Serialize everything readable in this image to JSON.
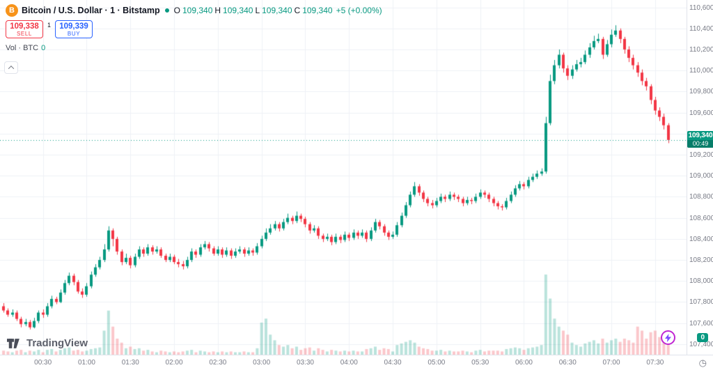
{
  "header": {
    "symbol_title": "Bitcoin / U.S. Dollar · 1 · Bitstamp",
    "ohlc": {
      "o_label": "O",
      "o": "109,340",
      "h_label": "H",
      "h": "109,340",
      "l_label": "L",
      "l": "109,340",
      "c_label": "C",
      "c": "109,340",
      "change": "+5 (+0.00%)"
    },
    "sell": {
      "price": "109,338",
      "label": "SELL"
    },
    "spread": "1",
    "buy": {
      "price": "109,339",
      "label": "BUY"
    },
    "volume_row": {
      "label": "Vol · BTC",
      "value": "0"
    }
  },
  "price_tag": {
    "price": "109,340",
    "countdown": "00:49"
  },
  "brand": {
    "name": "TradingView"
  },
  "badges": {
    "zero": "0"
  },
  "colors": {
    "up": "#089981",
    "down": "#f23645",
    "buy_blue": "#2962ff",
    "sell_red": "#f23645",
    "bitcoin_orange": "#f7931a",
    "axis_text": "#787b86",
    "grid": "#eef1f6"
  },
  "chart_data": {
    "type": "candlestick",
    "title": "Bitcoin / U.S. Dollar",
    "exchange": "Bitstamp",
    "interval": "1",
    "last_price": 109340,
    "price_min": 107300,
    "price_max": 110670,
    "x_ticks": [
      "00:30",
      "01:00",
      "01:30",
      "02:00",
      "02:30",
      "03:00",
      "03:30",
      "04:00",
      "04:30",
      "05:00",
      "05:30",
      "06:00",
      "06:30",
      "07:00",
      "07:30"
    ],
    "y_ticks": [
      110600,
      110400,
      110200,
      110000,
      109800,
      109600,
      109400,
      109200,
      109000,
      108800,
      108600,
      108400,
      108200,
      108000,
      107800,
      107600,
      107400
    ],
    "y_tick_labels": [
      "110,600",
      "110,400",
      "110,200",
      "110,000",
      "109,800",
      "109,600",
      "109,400",
      "109,200",
      "109,000",
      "108,800",
      "108,600",
      "108,400",
      "108,200",
      "108,000",
      "107,800",
      "107,600",
      "107,400"
    ],
    "volume_unit": "relative-0-100",
    "candles": [
      [
        107760,
        107790,
        107700,
        107720,
        5
      ],
      [
        107720,
        107740,
        107660,
        107680,
        4
      ],
      [
        107680,
        107730,
        107660,
        107700,
        3
      ],
      [
        107700,
        107720,
        107620,
        107640,
        5
      ],
      [
        107640,
        107660,
        107560,
        107590,
        6
      ],
      [
        107590,
        107640,
        107570,
        107610,
        3
      ],
      [
        107610,
        107630,
        107540,
        107560,
        5
      ],
      [
        107560,
        107650,
        107550,
        107620,
        4
      ],
      [
        107620,
        107720,
        107600,
        107700,
        6
      ],
      [
        107700,
        107730,
        107650,
        107680,
        3
      ],
      [
        107680,
        107790,
        107660,
        107760,
        6
      ],
      [
        107760,
        107860,
        107740,
        107830,
        7
      ],
      [
        107830,
        107850,
        107780,
        107800,
        4
      ],
      [
        107800,
        107920,
        107790,
        107890,
        6
      ],
      [
        107890,
        108010,
        107870,
        107980,
        8
      ],
      [
        107980,
        108080,
        107960,
        108050,
        9
      ],
      [
        108050,
        108070,
        107960,
        107990,
        5
      ],
      [
        107990,
        108010,
        107880,
        107900,
        6
      ],
      [
        107900,
        107930,
        107840,
        107870,
        4
      ],
      [
        107870,
        107980,
        107850,
        107950,
        5
      ],
      [
        107950,
        108090,
        107930,
        108060,
        7
      ],
      [
        108060,
        108160,
        108040,
        108130,
        8
      ],
      [
        108130,
        108230,
        108110,
        108200,
        9
      ],
      [
        108200,
        108350,
        108180,
        108300,
        30
      ],
      [
        108300,
        108520,
        108280,
        108480,
        55
      ],
      [
        108480,
        108500,
        108330,
        108400,
        35
      ],
      [
        108400,
        108420,
        108250,
        108280,
        20
      ],
      [
        108280,
        108300,
        108150,
        108180,
        15
      ],
      [
        108180,
        108260,
        108160,
        108220,
        8
      ],
      [
        108220,
        108240,
        108120,
        108150,
        10
      ],
      [
        108150,
        108260,
        108130,
        108230,
        7
      ],
      [
        108230,
        108330,
        108210,
        108300,
        8
      ],
      [
        108300,
        108320,
        108230,
        108260,
        5
      ],
      [
        108260,
        108350,
        108240,
        108320,
        6
      ],
      [
        108320,
        108340,
        108250,
        108280,
        4
      ],
      [
        108280,
        108330,
        108260,
        108300,
        3
      ],
      [
        108300,
        108320,
        108220,
        108240,
        5
      ],
      [
        108240,
        108260,
        108180,
        108200,
        4
      ],
      [
        108200,
        108260,
        108180,
        108230,
        3
      ],
      [
        108230,
        108250,
        108160,
        108180,
        4
      ],
      [
        108180,
        108210,
        108130,
        108160,
        3
      ],
      [
        108160,
        108190,
        108110,
        108140,
        4
      ],
      [
        108140,
        108230,
        108120,
        108200,
        5
      ],
      [
        108200,
        108310,
        108180,
        108280,
        6
      ],
      [
        108280,
        108300,
        108220,
        108250,
        3
      ],
      [
        108250,
        108350,
        108230,
        108320,
        5
      ],
      [
        108320,
        108380,
        108300,
        108350,
        4
      ],
      [
        108350,
        108370,
        108280,
        108310,
        3
      ],
      [
        108310,
        108330,
        108240,
        108260,
        4
      ],
      [
        108260,
        108330,
        108240,
        108300,
        3
      ],
      [
        108300,
        108320,
        108220,
        108250,
        4
      ],
      [
        108250,
        108320,
        108230,
        108290,
        3
      ],
      [
        108290,
        108310,
        108210,
        108240,
        4
      ],
      [
        108240,
        108310,
        108220,
        108280,
        3
      ],
      [
        108280,
        108330,
        108260,
        108300,
        3
      ],
      [
        108300,
        108320,
        108230,
        108260,
        4
      ],
      [
        108260,
        108320,
        108240,
        108290,
        3
      ],
      [
        108290,
        108310,
        108240,
        108270,
        3
      ],
      [
        108270,
        108360,
        108250,
        108330,
        8
      ],
      [
        108330,
        108430,
        108310,
        108400,
        40
      ],
      [
        108400,
        108500,
        108380,
        108460,
        45
      ],
      [
        108460,
        108540,
        108440,
        108500,
        25
      ],
      [
        108500,
        108570,
        108480,
        108540,
        18
      ],
      [
        108540,
        108560,
        108470,
        108500,
        12
      ],
      [
        108500,
        108590,
        108480,
        108560,
        10
      ],
      [
        108560,
        108640,
        108540,
        108600,
        12
      ],
      [
        108600,
        108620,
        108540,
        108570,
        8
      ],
      [
        108570,
        108660,
        108550,
        108620,
        10
      ],
      [
        108620,
        108640,
        108560,
        108590,
        6
      ],
      [
        108590,
        108610,
        108510,
        108540,
        8
      ],
      [
        108540,
        108560,
        108450,
        108480,
        9
      ],
      [
        108480,
        108530,
        108460,
        108500,
        5
      ],
      [
        108500,
        108520,
        108400,
        108430,
        8
      ],
      [
        108430,
        108450,
        108370,
        108400,
        6
      ],
      [
        108400,
        108450,
        108380,
        108420,
        4
      ],
      [
        108420,
        108440,
        108340,
        108370,
        6
      ],
      [
        108370,
        108450,
        108350,
        108420,
        5
      ],
      [
        108420,
        108440,
        108360,
        108390,
        4
      ],
      [
        108390,
        108470,
        108370,
        108440,
        5
      ],
      [
        108440,
        108460,
        108380,
        108410,
        4
      ],
      [
        108410,
        108490,
        108390,
        108460,
        5
      ],
      [
        108460,
        108480,
        108400,
        108430,
        4
      ],
      [
        108430,
        108490,
        108410,
        108460,
        4
      ],
      [
        108460,
        108480,
        108370,
        108400,
        7
      ],
      [
        108400,
        108510,
        108380,
        108480,
        8
      ],
      [
        108480,
        108590,
        108460,
        108560,
        10
      ],
      [
        108560,
        108580,
        108490,
        108520,
        6
      ],
      [
        108520,
        108540,
        108430,
        108460,
        8
      ],
      [
        108460,
        108480,
        108390,
        108420,
        7
      ],
      [
        108420,
        108470,
        108400,
        108440,
        4
      ],
      [
        108440,
        108560,
        108420,
        108530,
        12
      ],
      [
        108530,
        108650,
        108510,
        108620,
        14
      ],
      [
        108620,
        108750,
        108600,
        108720,
        16
      ],
      [
        108720,
        108850,
        108700,
        108820,
        18
      ],
      [
        108820,
        108940,
        108800,
        108900,
        15
      ],
      [
        108900,
        108920,
        108810,
        108840,
        10
      ],
      [
        108840,
        108860,
        108750,
        108780,
        8
      ],
      [
        108780,
        108800,
        108710,
        108740,
        7
      ],
      [
        108740,
        108770,
        108690,
        108720,
        5
      ],
      [
        108720,
        108790,
        108700,
        108760,
        5
      ],
      [
        108760,
        108830,
        108740,
        108800,
        6
      ],
      [
        108800,
        108820,
        108750,
        108780,
        4
      ],
      [
        108780,
        108850,
        108760,
        108820,
        5
      ],
      [
        108820,
        108840,
        108770,
        108800,
        4
      ],
      [
        108800,
        108820,
        108750,
        108780,
        4
      ],
      [
        108780,
        108800,
        108710,
        108740,
        5
      ],
      [
        108740,
        108800,
        108720,
        108770,
        4
      ],
      [
        108770,
        108790,
        108730,
        108760,
        3
      ],
      [
        108760,
        108830,
        108740,
        108800,
        5
      ],
      [
        108800,
        108870,
        108780,
        108840,
        6
      ],
      [
        108840,
        108860,
        108790,
        108820,
        4
      ],
      [
        108820,
        108840,
        108750,
        108780,
        5
      ],
      [
        108780,
        108800,
        108710,
        108740,
        5
      ],
      [
        108740,
        108760,
        108680,
        108710,
        5
      ],
      [
        108710,
        108730,
        108670,
        108700,
        4
      ],
      [
        108700,
        108790,
        108680,
        108760,
        7
      ],
      [
        108760,
        108850,
        108740,
        108820,
        8
      ],
      [
        108820,
        108910,
        108800,
        108880,
        9
      ],
      [
        108880,
        108950,
        108860,
        108920,
        8
      ],
      [
        108920,
        108940,
        108870,
        108900,
        6
      ],
      [
        108900,
        108990,
        108880,
        108960,
        8
      ],
      [
        108960,
        109020,
        108940,
        108990,
        9
      ],
      [
        108990,
        109050,
        108970,
        109020,
        10
      ],
      [
        109020,
        109070,
        109000,
        109040,
        12
      ],
      [
        109040,
        109560,
        109020,
        109500,
        100
      ],
      [
        109500,
        109960,
        109480,
        109900,
        70
      ],
      [
        109900,
        110100,
        109870,
        110050,
        45
      ],
      [
        110050,
        110200,
        110020,
        110150,
        35
      ],
      [
        110150,
        110170,
        109980,
        110020,
        30
      ],
      [
        110020,
        110050,
        109910,
        109950,
        25
      ],
      [
        109950,
        110050,
        109920,
        110010,
        15
      ],
      [
        110010,
        110100,
        109990,
        110060,
        12
      ],
      [
        110060,
        110120,
        110030,
        110080,
        10
      ],
      [
        110080,
        110190,
        110060,
        110150,
        14
      ],
      [
        110150,
        110260,
        110120,
        110220,
        16
      ],
      [
        110220,
        110330,
        110200,
        110280,
        18
      ],
      [
        110280,
        110350,
        110260,
        110300,
        14
      ],
      [
        110300,
        110320,
        110110,
        110150,
        20
      ],
      [
        110150,
        110290,
        110130,
        110250,
        15
      ],
      [
        110250,
        110390,
        110220,
        110340,
        18
      ],
      [
        110340,
        110430,
        110320,
        110380,
        20
      ],
      [
        110380,
        110400,
        110260,
        110300,
        16
      ],
      [
        110300,
        110320,
        110160,
        110200,
        20
      ],
      [
        110200,
        110230,
        110080,
        110120,
        18
      ],
      [
        110120,
        110150,
        110010,
        110050,
        15
      ],
      [
        110050,
        110080,
        109940,
        109980,
        35
      ],
      [
        109980,
        110010,
        109860,
        109900,
        30
      ],
      [
        109900,
        109930,
        109810,
        109850,
        20
      ],
      [
        109850,
        109870,
        109680,
        109720,
        28
      ],
      [
        109720,
        109750,
        109580,
        109620,
        30
      ],
      [
        109620,
        109650,
        109520,
        109560,
        22
      ],
      [
        109560,
        109590,
        109440,
        109480,
        24
      ],
      [
        109480,
        109500,
        109310,
        109340,
        26
      ]
    ]
  }
}
